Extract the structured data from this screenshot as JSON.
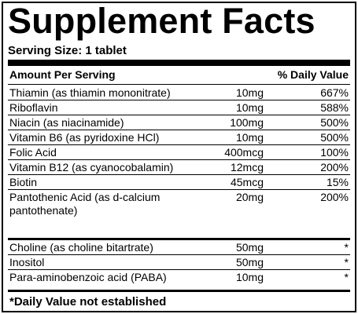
{
  "label": {
    "title": "Supplement Facts",
    "serving_size": "Serving Size: 1 tablet",
    "header": {
      "amount": "Amount Per Serving",
      "dv": "% Daily Value"
    },
    "rows_main": [
      {
        "name": "Thiamin (as thiamin mononitrate)",
        "amount": "10mg",
        "dv": "667%"
      },
      {
        "name": "Riboflavin",
        "amount": "10mg",
        "dv": "588%"
      },
      {
        "name": "Niacin (as niacinamide)",
        "amount": "100mg",
        "dv": "500%"
      },
      {
        "name": "Vitamin B6 (as pyridoxine HCl)",
        "amount": "10mg",
        "dv": "500%"
      },
      {
        "name": "Folic Acid",
        "amount": "400mcg",
        "dv": "100%"
      },
      {
        "name": "Vitamin B12 (as cyanocobalamin)",
        "amount": "12mcg",
        "dv": "200%"
      },
      {
        "name": "Biotin",
        "amount": "45mcg",
        "dv": "15%"
      },
      {
        "name": "Pantothenic Acid (as d-calcium pantothenate)",
        "amount": "20mg",
        "dv": "200%"
      }
    ],
    "rows_other": [
      {
        "name": "Choline (as choline bitartrate)",
        "amount": "50mg",
        "dv": "*"
      },
      {
        "name": "Inositol",
        "amount": "50mg",
        "dv": "*"
      },
      {
        "name": "Para-aminobenzoic acid (PABA)",
        "amount": "10mg",
        "dv": "*"
      }
    ],
    "footnote": "*Daily Value not established"
  }
}
